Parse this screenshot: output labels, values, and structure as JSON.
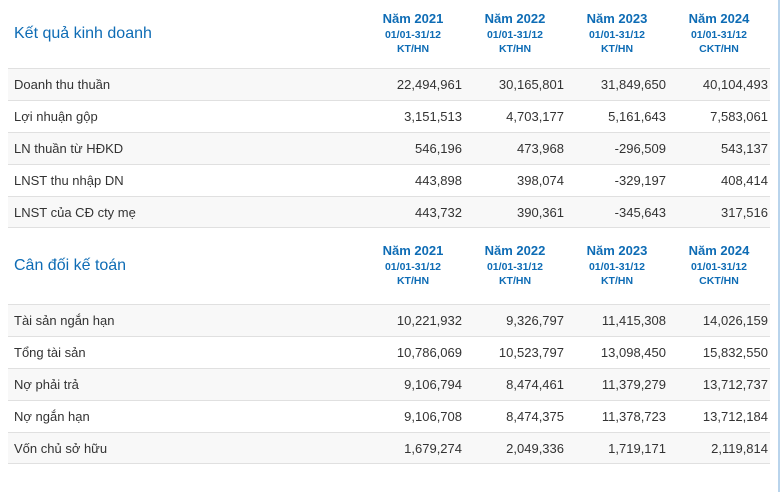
{
  "theme": {
    "accent_blue": "#0e6cb5",
    "alt_row_bg": "#f8f8f8",
    "row_border": "#e0e0e0",
    "text_color": "#333333",
    "page_right_border": "#b9d4ec"
  },
  "columns": [
    {
      "year": "Năm 2021",
      "period": "01/01-31/12",
      "kind": "KT/HN"
    },
    {
      "year": "Năm 2022",
      "period": "01/01-31/12",
      "kind": "KT/HN"
    },
    {
      "year": "Năm 2023",
      "period": "01/01-31/12",
      "kind": "KT/HN"
    },
    {
      "year": "Năm 2024",
      "period": "01/01-31/12",
      "kind": "CKT/HN"
    }
  ],
  "sections": [
    {
      "title": "Kết quả kinh doanh",
      "rows": [
        {
          "label": "Doanh thu thuần",
          "values": [
            "22,494,961",
            "30,165,801",
            "31,849,650",
            "40,104,493"
          ]
        },
        {
          "label": "Lợi nhuận gộp",
          "values": [
            "3,151,513",
            "4,703,177",
            "5,161,643",
            "7,583,061"
          ]
        },
        {
          "label": "LN thuần từ HĐKD",
          "values": [
            "546,196",
            "473,968",
            "-296,509",
            "543,137"
          ]
        },
        {
          "label": "LNST thu nhập DN",
          "values": [
            "443,898",
            "398,074",
            "-329,197",
            "408,414"
          ]
        },
        {
          "label": "LNST của CĐ cty mẹ",
          "values": [
            "443,732",
            "390,361",
            "-345,643",
            "317,516"
          ]
        }
      ]
    },
    {
      "title": "Cân đối kế toán",
      "rows": [
        {
          "label": "Tài sản ngắn hạn",
          "values": [
            "10,221,932",
            "9,326,797",
            "11,415,308",
            "14,026,159"
          ]
        },
        {
          "label": "Tổng tài sản",
          "values": [
            "10,786,069",
            "10,523,797",
            "13,098,450",
            "15,832,550"
          ]
        },
        {
          "label": "Nợ phải trả",
          "values": [
            "9,106,794",
            "8,474,461",
            "11,379,279",
            "13,712,737"
          ]
        },
        {
          "label": "Nợ ngắn hạn",
          "values": [
            "9,106,708",
            "8,474,375",
            "11,378,723",
            "13,712,184"
          ]
        },
        {
          "label": "Vốn chủ sở hữu",
          "values": [
            "1,679,274",
            "2,049,336",
            "1,719,171",
            "2,119,814"
          ]
        }
      ]
    }
  ]
}
